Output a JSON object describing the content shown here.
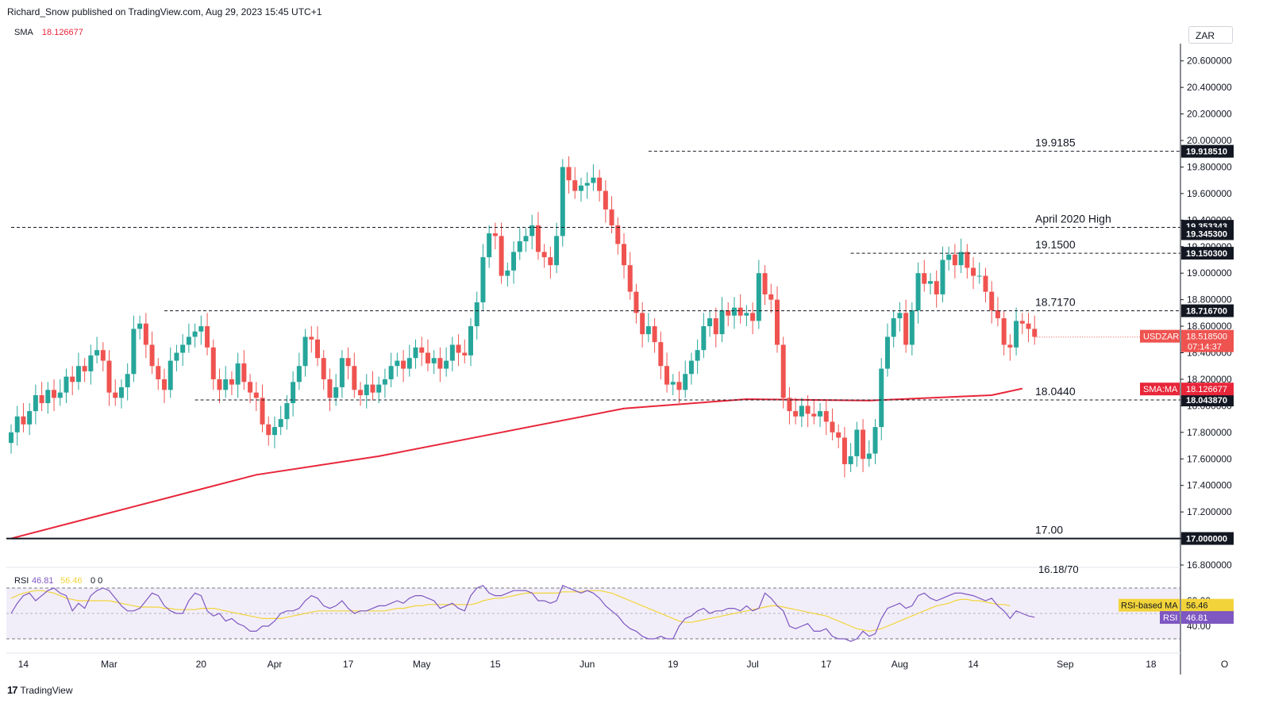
{
  "header": {
    "text": "Richard_Snow published on TradingView.com, Aug 29, 2023 15:45 UTC+1"
  },
  "sma_legend": {
    "label": "SMA",
    "value": "18.126677"
  },
  "currency_button": {
    "label": "ZAR"
  },
  "footer": {
    "brand": "TradingView",
    "logo_mark": "17"
  },
  "colors": {
    "up": "#26a69a",
    "down": "#ef5350",
    "sma": "#e8263a",
    "rsi": "#7e57c2",
    "rsi_ma": "#f2d43a"
  },
  "chart_data": {
    "type": "candlestick",
    "symbol": "USDZAR",
    "ylim": [
      16.8,
      20.7
    ],
    "y_ticks": [
      "20.600000",
      "20.400000",
      "20.200000",
      "20.000000",
      "19.800000",
      "19.600000",
      "19.400000",
      "19.200000",
      "19.000000",
      "18.800000",
      "18.600000",
      "18.400000",
      "18.200000",
      "18.000000",
      "17.800000",
      "17.600000",
      "17.400000",
      "17.200000",
      "17.000000",
      "16.800000"
    ],
    "x_ticks": [
      {
        "bar": 2,
        "label": "14"
      },
      {
        "bar": 16,
        "label": "Mar"
      },
      {
        "bar": 31,
        "label": "20"
      },
      {
        "bar": 43,
        "label": "Apr"
      },
      {
        "bar": 55,
        "label": "17"
      },
      {
        "bar": 67,
        "label": "May"
      },
      {
        "bar": 79,
        "label": "15"
      },
      {
        "bar": 94,
        "label": "Jun"
      },
      {
        "bar": 108,
        "label": "19"
      },
      {
        "bar": 121,
        "label": "Jul"
      },
      {
        "bar": 133,
        "label": "17"
      },
      {
        "bar": 145,
        "label": "Aug"
      },
      {
        "bar": 157,
        "label": "14"
      },
      {
        "bar": 172,
        "label": "Sep"
      },
      {
        "bar": 186,
        "label": "18"
      },
      {
        "bar": 198,
        "label": "O"
      }
    ],
    "closes": [
      17.8,
      17.92,
      17.86,
      17.96,
      18.08,
      18.02,
      18.12,
      18.06,
      18.1,
      18.22,
      18.18,
      18.3,
      18.26,
      18.38,
      18.42,
      18.34,
      18.1,
      18.06,
      18.14,
      18.24,
      18.58,
      18.62,
      18.46,
      18.3,
      18.2,
      18.12,
      18.34,
      18.4,
      18.46,
      18.52,
      18.56,
      18.6,
      18.44,
      18.2,
      18.12,
      18.2,
      18.16,
      18.32,
      18.18,
      18.1,
      18.06,
      17.86,
      17.78,
      17.84,
      17.9,
      18.02,
      18.18,
      18.3,
      18.52,
      18.5,
      18.36,
      18.2,
      18.06,
      18.14,
      18.36,
      18.3,
      18.12,
      18.08,
      18.16,
      18.1,
      18.16,
      18.2,
      18.3,
      18.34,
      18.28,
      18.36,
      18.44,
      18.4,
      18.32,
      18.36,
      18.28,
      18.34,
      18.46,
      18.4,
      18.38,
      18.6,
      18.78,
      19.12,
      19.3,
      19.28,
      18.98,
      19.02,
      19.16,
      19.24,
      19.28,
      19.36,
      19.16,
      19.12,
      19.06,
      19.28,
      19.8,
      19.7,
      19.62,
      19.66,
      19.68,
      19.72,
      19.62,
      19.48,
      19.36,
      19.22,
      19.06,
      18.86,
      18.7,
      18.54,
      18.6,
      18.48,
      18.3,
      18.16,
      18.18,
      18.12,
      18.24,
      18.34,
      18.42,
      18.6,
      18.66,
      18.54,
      18.72,
      18.68,
      18.74,
      18.68,
      18.7,
      18.64,
      19.0,
      18.84,
      18.8,
      18.46,
      18.06,
      17.96,
      17.92,
      18.0,
      17.94,
      17.92,
      17.96,
      17.88,
      17.8,
      17.76,
      17.56,
      17.62,
      17.82,
      17.6,
      17.64,
      17.84,
      18.28,
      18.52,
      18.66,
      18.7,
      18.46,
      18.72,
      19.0,
      18.92,
      18.94,
      18.84,
      19.1,
      19.14,
      19.06,
      19.16,
      19.04,
      18.98,
      18.98,
      18.86,
      18.72,
      18.66,
      18.46,
      18.44,
      18.64,
      18.62,
      18.58,
      18.52
    ],
    "sma": {
      "label": "SMA:MA",
      "value": "18.126677",
      "x": [
        0,
        20,
        40,
        60,
        80,
        100,
        120,
        140,
        160,
        165
      ],
      "y": [
        17.0,
        17.24,
        17.48,
        17.62,
        17.8,
        17.98,
        18.05,
        18.04,
        18.08,
        18.13
      ]
    },
    "levels": [
      {
        "label": "19.9185",
        "price": 19.9185,
        "axis_label": "19.918510",
        "from_bar": 104
      },
      {
        "label": "April 2020 High",
        "price": 19.3453,
        "axis_label": "19.345300",
        "from_bar": 0
      },
      {
        "label": "19.1500",
        "price": 19.1503,
        "axis_label": "19.150300",
        "from_bar": 137
      },
      {
        "label": "18.7170",
        "price": 18.7167,
        "axis_label": "18.716700",
        "from_bar": 25
      },
      {
        "label": "18.0440",
        "price": 18.0439,
        "axis_label": "18.043870",
        "from_bar": 30
      },
      {
        "label": "17.00",
        "price": 17.0,
        "axis_label": "17.000000",
        "from_bar": 0,
        "solid": true
      }
    ],
    "extra_axis_label": {
      "price": 19.353343,
      "text": "19.353343"
    },
    "partial_label": "16.18/70",
    "price_tag": {
      "name": "USDZAR",
      "value": "18.518500",
      "timer": "07:14:37",
      "price": 18.5185
    },
    "sma_tag": {
      "name": "SMA:MA",
      "value": "18.126677",
      "price": 18.1267
    },
    "rsi": {
      "label": "RSI",
      "value": "46.81",
      "ma_label": "RSI-based MA",
      "ma_value": "56.46",
      "extra": "0  0",
      "ylim": [
        25,
        75
      ],
      "upper": 70,
      "lower": 30,
      "ticks": [
        {
          "v": 60,
          "text": "60.00"
        },
        {
          "v": 40,
          "text": "40.00"
        }
      ],
      "values": [
        50,
        58,
        64,
        66,
        60,
        64,
        68,
        70,
        66,
        64,
        52,
        58,
        54,
        64,
        68,
        70,
        68,
        62,
        56,
        52,
        52,
        54,
        60,
        66,
        64,
        56,
        52,
        50,
        50,
        60,
        66,
        64,
        52,
        48,
        50,
        44,
        46,
        42,
        40,
        36,
        36,
        40,
        40,
        44,
        50,
        52,
        52,
        54,
        60,
        64,
        62,
        56,
        54,
        56,
        60,
        54,
        50,
        52,
        52,
        54,
        56,
        56,
        58,
        60,
        58,
        62,
        64,
        64,
        62,
        60,
        54,
        56,
        58,
        54,
        52,
        64,
        70,
        72,
        66,
        64,
        64,
        66,
        68,
        68,
        68,
        66,
        60,
        60,
        58,
        60,
        72,
        70,
        68,
        66,
        68,
        66,
        62,
        56,
        52,
        48,
        42,
        38,
        36,
        32,
        30,
        30,
        32,
        30,
        30,
        40,
        46,
        48,
        52,
        54,
        50,
        52,
        52,
        54,
        54,
        52,
        56,
        52,
        54,
        66,
        62,
        56,
        52,
        40,
        38,
        40,
        42,
        36,
        36,
        38,
        32,
        30,
        30,
        28,
        30,
        36,
        32,
        34,
        46,
        54,
        56,
        58,
        54,
        56,
        64,
        66,
        62,
        60,
        62,
        64,
        66,
        66,
        65,
        64,
        62,
        60,
        62,
        56,
        52,
        46,
        52,
        50,
        48,
        47
      ],
      "ma": [
        62,
        64,
        66,
        67,
        68,
        68,
        67,
        66,
        64,
        62,
        61,
        60,
        60,
        60,
        60,
        60,
        60,
        59,
        58,
        57,
        56,
        55,
        55,
        55,
        55,
        54,
        54,
        53,
        53,
        53,
        53,
        54,
        54,
        54,
        53,
        52,
        51,
        50,
        49,
        48,
        47,
        46,
        46,
        46,
        46,
        47,
        48,
        49,
        50,
        51,
        52,
        52,
        52,
        52,
        52,
        52,
        52,
        52,
        52,
        52,
        52,
        52,
        53,
        54,
        54,
        55,
        56,
        56,
        57,
        57,
        57,
        57,
        57,
        57,
        57,
        57,
        58,
        60,
        61,
        62,
        62,
        63,
        64,
        65,
        66,
        66,
        66,
        66,
        66,
        66,
        67,
        67,
        67,
        67,
        68,
        68,
        68,
        67,
        66,
        64,
        62,
        60,
        58,
        56,
        54,
        52,
        50,
        48,
        46,
        44,
        43,
        43,
        44,
        45,
        46,
        47,
        48,
        49,
        50,
        51,
        52,
        53,
        54,
        55,
        56,
        56,
        55,
        54,
        53,
        52,
        51,
        50,
        49,
        48,
        46,
        44,
        42,
        40,
        38,
        37,
        36,
        37,
        38,
        40,
        42,
        44,
        46,
        48,
        50,
        52,
        54,
        56,
        57,
        58,
        60,
        61,
        61,
        60,
        60,
        59,
        58,
        57,
        57,
        56
      ]
    }
  }
}
